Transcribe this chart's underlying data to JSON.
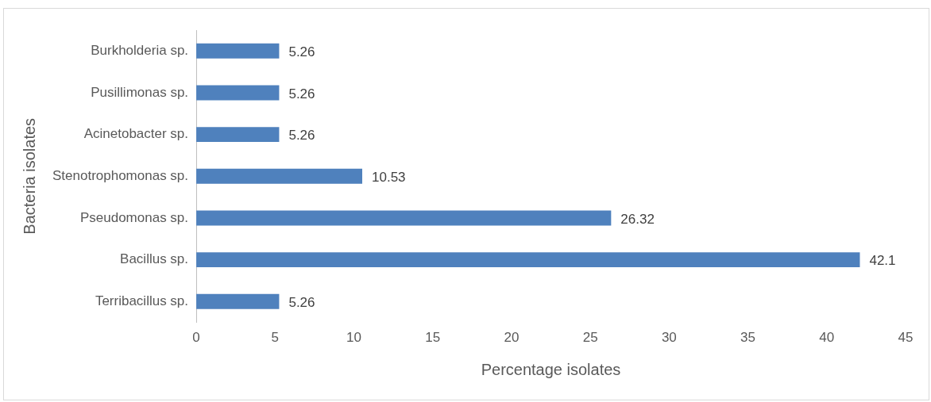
{
  "chart_data": {
    "type": "bar",
    "orientation": "horizontal",
    "xlabel": "Percentage isolates",
    "ylabel": "Bacteria isolates",
    "categories": [
      "Burkholderia sp.",
      "Pusillimonas sp.",
      "Acinetobacter sp.",
      "Stenotrophomonas sp.",
      "Pseudomonas sp.",
      "Bacillus sp.",
      "Terribacillus sp."
    ],
    "values": [
      5.26,
      5.26,
      5.26,
      10.53,
      26.32,
      42.1,
      5.26
    ],
    "color": "#4f81bd",
    "xlim": [
      0,
      45
    ],
    "xticks": [
      0,
      5,
      10,
      15,
      20,
      25,
      30,
      35,
      40,
      45
    ],
    "grid": false,
    "legend": false,
    "data_labels": true
  }
}
